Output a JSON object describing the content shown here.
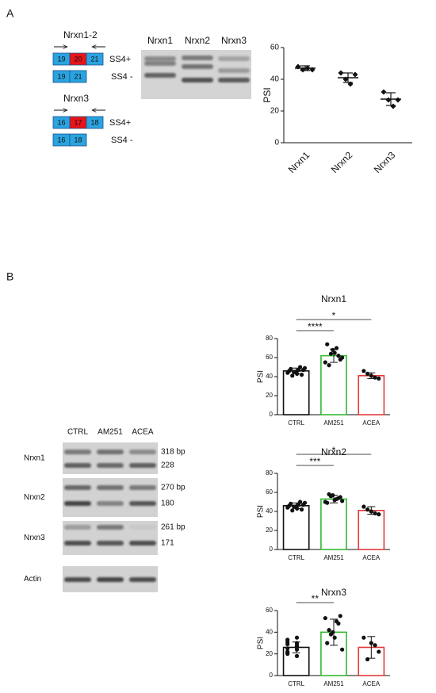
{
  "panel_labels": [
    "A",
    "B"
  ],
  "diagram": {
    "groups": [
      {
        "title": "Nrxn1-2",
        "exons": [
          "19",
          "20",
          "21"
        ],
        "skip_exons": [
          "19",
          "21"
        ],
        "labels": [
          "SS4+",
          "SS4 -"
        ]
      },
      {
        "title": "Nrxn3",
        "exons": [
          "16",
          "17",
          "18"
        ],
        "skip_exons": [
          "16",
          "18"
        ],
        "labels": [
          "SS4+",
          "SS4 -"
        ]
      }
    ]
  },
  "gel_a": {
    "lanes": [
      "Nrxn1",
      "Nrxn2",
      "Nrxn3"
    ]
  },
  "gel_b": {
    "lanes": [
      "CTRL",
      "AM251",
      "ACEA"
    ],
    "rows": [
      {
        "name": "Nrxn1",
        "sizes": [
          "318 bp",
          "228"
        ]
      },
      {
        "name": "Nrxn2",
        "sizes": [
          "270 bp",
          "180"
        ]
      },
      {
        "name": "Nrxn3",
        "sizes": [
          "261 bp",
          "171"
        ]
      },
      {
        "name": "Actin"
      }
    ]
  },
  "chart_data": [
    {
      "type": "dotplot",
      "y_label": "PSI",
      "categories": [
        "Nrxn1",
        "Nrxn2",
        "Nrxn3"
      ],
      "points": [
        [
          48,
          46,
          47,
          46
        ],
        [
          44,
          40,
          37,
          43
        ],
        [
          32,
          27,
          23,
          27
        ]
      ],
      "means": [
        47,
        41,
        27.5
      ],
      "errors": [
        1.5,
        3,
        4
      ],
      "ylim": [
        0,
        60
      ],
      "yticks": [
        0,
        20,
        40,
        60
      ],
      "color": "#111111"
    },
    {
      "type": "bar",
      "title": "Nrxn1",
      "y_label": "PSI",
      "categories": [
        "CTRL",
        "AM251",
        "ACEA"
      ],
      "colors": [
        "#111111",
        "#33bb33",
        "#e23b3b"
      ],
      "means": [
        46,
        62,
        41
      ],
      "errors": [
        3,
        7,
        3
      ],
      "points": [
        [
          44,
          47,
          48,
          42,
          45,
          49,
          43,
          46,
          50,
          41,
          47,
          45
        ],
        [
          55,
          62,
          68,
          74,
          58,
          65,
          52,
          60,
          70,
          64
        ],
        [
          46,
          41,
          38,
          43,
          39
        ]
      ],
      "ylim": [
        0,
        80
      ],
      "yticks": [
        0,
        20,
        40,
        60,
        80
      ],
      "significance": [
        {
          "label": "****",
          "compare": [
            0,
            1
          ]
        },
        {
          "label": "*",
          "compare": [
            0,
            2
          ]
        }
      ]
    },
    {
      "type": "bar",
      "title": "Nrxn2",
      "y_label": "PSI",
      "categories": [
        "CTRL",
        "AM251",
        "ACEA"
      ],
      "colors": [
        "#111111",
        "#33bb33",
        "#e23b3b"
      ],
      "means": [
        46,
        53,
        41
      ],
      "errors": [
        3,
        4,
        4
      ],
      "points": [
        [
          44,
          47,
          48,
          42,
          45,
          49,
          43,
          46,
          50,
          41,
          47,
          45
        ],
        [
          50,
          54,
          57,
          49,
          55,
          52,
          58,
          51,
          53,
          56
        ],
        [
          45,
          40,
          37,
          42,
          38
        ]
      ],
      "ylim": [
        0,
        80
      ],
      "yticks": [
        0,
        20,
        40,
        60,
        80
      ],
      "significance": [
        {
          "label": "***",
          "compare": [
            0,
            1
          ]
        },
        {
          "label": "*",
          "compare": [
            0,
            2
          ]
        }
      ]
    },
    {
      "type": "bar",
      "title": "Nrxn3",
      "y_label": "PSI",
      "categories": [
        "CTRL",
        "AM251",
        "ACEA"
      ],
      "colors": [
        "#111111",
        "#33bb33",
        "#e23b3b"
      ],
      "means": [
        26,
        40,
        26
      ],
      "errors": [
        5,
        12,
        10
      ],
      "points": [
        [
          22,
          28,
          31,
          18,
          25,
          35,
          20,
          27,
          33,
          24,
          29,
          26,
          21,
          30
        ],
        [
          53,
          48,
          40,
          30,
          55,
          35,
          42,
          24,
          50,
          38
        ],
        [
          35,
          30,
          22,
          15,
          28
        ]
      ],
      "ylim": [
        0,
        60
      ],
      "yticks": [
        0,
        20,
        40,
        60
      ],
      "significance": [
        {
          "label": "**",
          "compare": [
            0,
            1
          ]
        }
      ]
    }
  ]
}
